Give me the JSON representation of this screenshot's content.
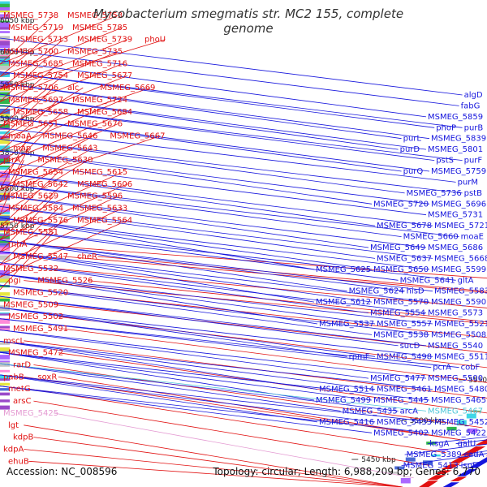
{
  "title": "Mycobacterium smegmatis str. MC2 155, complete genome",
  "footer": {
    "accession": "Accession: NC_008596",
    "stats": "Topology: circular; Length: 6,988,209 bp; Genes: 6,770"
  },
  "colors": {
    "reverse_strand": "#e11111",
    "forward_strand": "#1515dd",
    "highlight": "#e49ad2",
    "highlight_right": "#4bc6d8",
    "backbone": "#777777",
    "tick": "#1a9a1a"
  },
  "chart_data": {
    "type": "genome-map",
    "kbp_ticks": [
      "6050 kbp",
      "6000 kbp",
      "5950 kbp",
      "5900 kbp",
      "5850 kbp",
      "5800 kbp",
      "5750 kbp",
      "5700 kbp",
      "5650 kbp",
      "5600 kbp",
      "5550 kbp",
      "5500 kbp",
      "5450 kbp"
    ],
    "left_labels": [
      "MSMEG_5738",
      "MSMEG_5753",
      "MSMEG_5719",
      "MSMEG_5785",
      "MSMEG_5713",
      "MSMEG_5739",
      "phoU",
      "MSMEG_5700",
      "MSMEG_5735",
      "MSMEG_5685",
      "MSMEG_5716",
      "MSMEG_5754",
      "MSMEG_5677",
      "MSMEG_5706",
      "alc",
      "MSMEG_5669",
      "MSMEG_5697",
      "MSMEG_5724",
      "MSMEG_5658",
      "MSMEG_5684",
      "MSMEG_5651",
      "MSMEG_5676",
      "moaA",
      "MSMEG_5646",
      "MSMEG_5667",
      "map",
      "MSMEG_5643",
      "prrA",
      "MSMEG_5630",
      "MSMEG_5654",
      "MSMEG_5615",
      "MSMEG_5642",
      "MSMEG_5606",
      "MSMEG_5629",
      "MSMEG_5596",
      "MSMEG_5584",
      "MSMEG_5633",
      "MSMEG_5576",
      "MSMEG_5564",
      "MSMEG_5551",
      "rnhA",
      "MSMEG_5547",
      "cheR",
      "MSMEG_5532",
      "pgi",
      "MSMEG_5526",
      "MSMEG_5520",
      "MSMEG_5509",
      "MSMEG_5502",
      "MSMEG_5491",
      "mscL",
      "MSMEG_5472",
      "rarD",
      "pabB",
      "soxR",
      "metG",
      "arsC",
      "MSMEG_5425",
      "lgt",
      "kdpB",
      "kdpA",
      "ehuB"
    ],
    "right_labels": [
      "algD",
      "fabG",
      "MSMEG_5859",
      "phoP",
      "purB",
      "purL",
      "MSMEG_5839",
      "purD",
      "MSMEG_5801",
      "pstS",
      "purF",
      "purQ",
      "MSMEG_5759",
      "purM",
      "MSMEG_5736",
      "pstB",
      "MSMEG_5720",
      "MSMEG_5696",
      "MSMEG_5731",
      "MSMEG_5678",
      "MSMEG_5721",
      "MSMEG_5660",
      "moaE",
      "MSMEG_5649",
      "MSMEG_5686",
      "MSMEG_5637",
      "MSMEG_5668",
      "MSMEG_5625",
      "MSMEG_5650",
      "MSMEG_5599",
      "MSMEG_5641",
      "gltA",
      "MSMEG_5624",
      "hisD",
      "MSMEG_5583",
      "MSMEG_5612",
      "MSMEG_5570",
      "MSMEG_5590",
      "MSMEG_5554",
      "MSMEG_5573",
      "MSMEG_5537",
      "MSMEG_5557",
      "MSMEG_5521",
      "MSMEG_5538",
      "MSMEG_5508",
      "sucD",
      "MSMEG_5540",
      "rpmF",
      "MSMEG_5498",
      "MSMEG_5511",
      "pcrA",
      "cobF",
      "MSMEG_5477",
      "MSMEG_5500",
      "MSMEG_5514",
      "MSMEG_5461",
      "MSMEG_5480",
      "MSMEG_5499",
      "MSMEG_5445",
      "MSMEG_5465",
      "MSMEG_5435",
      "arcA",
      "MSMEG_5467",
      "MSMEG_5416",
      "MSMEG_5433",
      "MSMEG_5452",
      "MSMEG_5402",
      "MSMEG_5422",
      "ksgA",
      "galU",
      "MSMEG_5389",
      "cadA",
      "MSMEG_5413",
      "ispE"
    ]
  }
}
